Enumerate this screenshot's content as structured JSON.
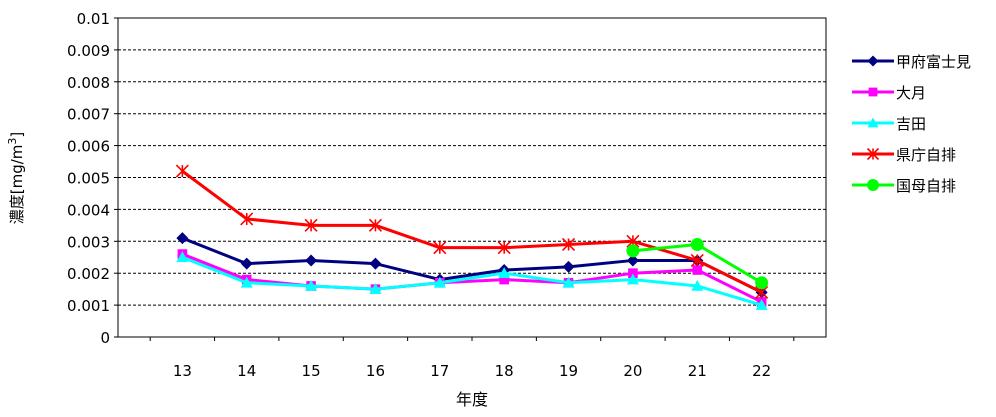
{
  "chart_data": {
    "type": "line",
    "title": "",
    "xlabel": "年度",
    "ylabel": "濃度[mg/m",
    "ylabel_superscript": "3",
    "ylabel_close": "]",
    "categories": [
      "13",
      "14",
      "15",
      "16",
      "17",
      "18",
      "19",
      "20",
      "21",
      "22"
    ],
    "ylim": [
      0,
      0.01
    ],
    "yticks": [
      "0",
      "0.001",
      "0.002",
      "0.003",
      "0.004",
      "0.005",
      "0.006",
      "0.007",
      "0.008",
      "0.009",
      "0.01"
    ],
    "grid": "horizontal dashed",
    "legend_position": "right",
    "series": [
      {
        "name": "甲府富士見",
        "color": "#000080",
        "marker": "diamond",
        "values": [
          0.0031,
          0.0023,
          0.0024,
          0.0023,
          0.0018,
          0.0021,
          0.0022,
          0.0024,
          0.0024,
          0.0014
        ]
      },
      {
        "name": "大月",
        "color": "#FF00FF",
        "marker": "square",
        "values": [
          0.0026,
          0.0018,
          0.0016,
          0.0015,
          0.0017,
          0.0018,
          0.0017,
          0.002,
          0.0021,
          0.0011
        ]
      },
      {
        "name": "吉田",
        "color": "#00FFFF",
        "marker": "triangle",
        "values": [
          0.0025,
          0.0017,
          0.0016,
          0.0015,
          0.0017,
          0.002,
          0.0017,
          0.0018,
          0.0016,
          0.001
        ]
      },
      {
        "name": "県庁自排",
        "color": "#FF0000",
        "marker": "star",
        "values": [
          0.0052,
          0.0037,
          0.0035,
          0.0035,
          0.0028,
          0.0028,
          0.0029,
          0.003,
          0.0024,
          0.0014
        ]
      },
      {
        "name": "国母自排",
        "color": "#00FF00",
        "marker": "circle",
        "values": [
          null,
          null,
          null,
          null,
          null,
          null,
          null,
          0.0027,
          0.0029,
          0.0017
        ]
      }
    ]
  }
}
